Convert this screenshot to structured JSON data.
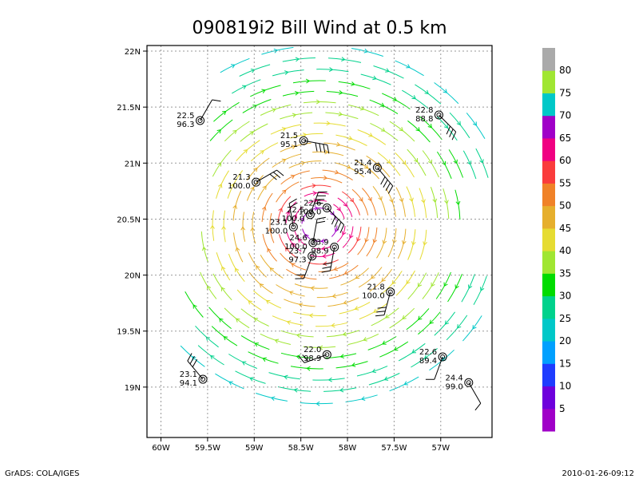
{
  "chart_data": {
    "type": "scatter",
    "title": "090819i2 Bill Wind at 0.5 km",
    "xlabel": "",
    "ylabel": "",
    "xlim": [
      -60.15,
      -56.45
    ],
    "ylim": [
      18.55,
      22.05
    ],
    "grid": true,
    "x_ticks": [
      {
        "value": -60.0,
        "label": "60W"
      },
      {
        "value": -59.5,
        "label": "59.5W"
      },
      {
        "value": -59.0,
        "label": "59W"
      },
      {
        "value": -58.5,
        "label": "58.5W"
      },
      {
        "value": -58.0,
        "label": "58W"
      },
      {
        "value": -57.5,
        "label": "57.5W"
      },
      {
        "value": -57.0,
        "label": "57W"
      }
    ],
    "y_ticks": [
      {
        "value": 19.0,
        "label": "19N"
      },
      {
        "value": 19.5,
        "label": "19.5N"
      },
      {
        "value": 20.0,
        "label": "20N"
      },
      {
        "value": 20.5,
        "label": "20.5N"
      },
      {
        "value": 21.0,
        "label": "21N"
      },
      {
        "value": 21.5,
        "label": "21.5N"
      },
      {
        "value": 22.0,
        "label": "22N"
      }
    ],
    "storm_center": {
      "lon": -58.3,
      "lat": 20.45
    },
    "colorbar": {
      "ticks": [
        "5",
        "10",
        "15",
        "20",
        "25",
        "30",
        "35",
        "40",
        "45",
        "50",
        "55",
        "60",
        "65",
        "70",
        "75",
        "80"
      ],
      "colors": [
        "#a000c8",
        "#6e00dc",
        "#1e3cff",
        "#00a0ff",
        "#00c8c8",
        "#00d28c",
        "#00dc00",
        "#a0e632",
        "#e6dc32",
        "#e6af2d",
        "#f08228",
        "#fa3c3c",
        "#f00082",
        "#a000c8",
        "#00c8c8",
        "#a0e632",
        "#aaaaaa"
      ]
    },
    "observations": [
      {
        "lon": -59.58,
        "lat": 21.38,
        "top": "22.5",
        "bottom": "96.3",
        "dir": 30,
        "barbs": 1
      },
      {
        "lon": -58.98,
        "lat": 20.83,
        "top": "21.3",
        "bottom": "100.0",
        "dir": 60,
        "barbs": 3
      },
      {
        "lon": -58.47,
        "lat": 21.2,
        "top": "21.5",
        "bottom": "95.1",
        "dir": 100,
        "barbs": 4
      },
      {
        "lon": -57.68,
        "lat": 20.96,
        "top": "21.4",
        "bottom": "95.4",
        "dir": 140,
        "barbs": 4
      },
      {
        "lon": -57.02,
        "lat": 21.43,
        "top": "22.8",
        "bottom": "88.8",
        "dir": 135,
        "barbs": 3
      },
      {
        "lon": -58.22,
        "lat": 20.6,
        "top": "22.6",
        "bottom": "100.0",
        "dir": 135,
        "barbs": 4
      },
      {
        "lon": -58.4,
        "lat": 20.54,
        "top": "22.5",
        "bottom": "100.0",
        "dir": 20,
        "barbs": 4
      },
      {
        "lon": -58.58,
        "lat": 20.43,
        "top": "23.1",
        "bottom": "100.0",
        "dir": 350,
        "barbs": 2
      },
      {
        "lon": -58.37,
        "lat": 20.29,
        "top": "24.6",
        "bottom": "100.0",
        "dir": 10,
        "barbs": 2
      },
      {
        "lon": -58.14,
        "lat": 20.25,
        "top": "23.9",
        "bottom": "98.9",
        "dir": 190,
        "barbs": 3
      },
      {
        "lon": -58.38,
        "lat": 20.17,
        "top": "23.7",
        "bottom": "97.3",
        "dir": 200,
        "barbs": 2
      },
      {
        "lon": -57.54,
        "lat": 19.85,
        "top": "21.8",
        "bottom": "100.0",
        "dir": 195,
        "barbs": 3
      },
      {
        "lon": -58.22,
        "lat": 19.29,
        "top": "22.0",
        "bottom": "98.9",
        "dir": 250,
        "barbs": 2
      },
      {
        "lon": -56.98,
        "lat": 19.27,
        "top": "22.6",
        "bottom": "89.4",
        "dir": 200,
        "barbs": 1
      },
      {
        "lon": -56.7,
        "lat": 19.04,
        "top": "24.4",
        "bottom": "99.0",
        "dir": 150,
        "barbs": 1
      },
      {
        "lon": -59.55,
        "lat": 19.07,
        "top": "23.1",
        "bottom": "94.1",
        "dir": 320,
        "barbs": 3
      }
    ]
  },
  "footer": {
    "left": "GrADS: COLA/IGES",
    "right": "2010-01-26-09:12"
  }
}
